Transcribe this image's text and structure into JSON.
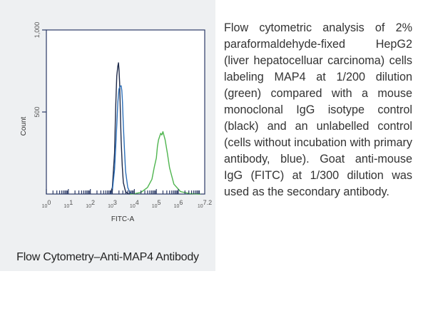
{
  "caption": "Flow Cytometry–Anti-MAP4 Antibody",
  "description": "Flow cytometric analysis of 2% paraformaldehyde-fixed HepG2 (liver hepatocelluar carcinoma) cells labeling MAP4                        at 1/200 dilution (green) compared with a mouse monoclonal IgG isotype control (black) and an unlabelled control (cells without incubation with primary antibody, blue). Goat anti-mouse IgG (FITC) at 1/300 dilution was used as the secondary antibody.",
  "colors": {
    "green": "#4fb54f",
    "black": "#1e2a4a",
    "blue": "#2d6fb8",
    "axis": "#2b3a66"
  },
  "chart_data": {
    "type": "line",
    "xlabel": "FITC-A",
    "ylabel": "Count",
    "xscale": "log",
    "xlim": [
      0,
      7.2
    ],
    "ylim": [
      0,
      1000
    ],
    "x_ticks": [
      {
        "v": 0,
        "label": "10",
        "exp": "0"
      },
      {
        "v": 1,
        "label": "10",
        "exp": "1"
      },
      {
        "v": 2,
        "label": "10",
        "exp": "2"
      },
      {
        "v": 3,
        "label": "10",
        "exp": "3"
      },
      {
        "v": 4,
        "label": "10",
        "exp": "4"
      },
      {
        "v": 5,
        "label": "10",
        "exp": "5"
      },
      {
        "v": 6,
        "label": "10",
        "exp": "6"
      },
      {
        "v": 7.2,
        "label": "10",
        "exp": "7.2"
      }
    ],
    "y_ticks": [
      {
        "v": 500,
        "label": "500"
      },
      {
        "v": 1000,
        "label": "1,000"
      }
    ],
    "series": [
      {
        "color_key": "black",
        "x": [
          2.9,
          3.0,
          3.1,
          3.15,
          3.2,
          3.25,
          3.28,
          3.3,
          3.33,
          3.36,
          3.4,
          3.45,
          3.5,
          3.6,
          3.7,
          3.8
        ],
        "y": [
          0,
          40,
          250,
          520,
          720,
          780,
          800,
          760,
          680,
          520,
          330,
          170,
          70,
          15,
          3,
          0
        ]
      },
      {
        "color_key": "blue",
        "x": [
          2.9,
          3.0,
          3.1,
          3.2,
          3.25,
          3.3,
          3.35,
          3.4,
          3.43,
          3.46,
          3.5,
          3.55,
          3.6,
          3.7,
          3.8,
          3.9
        ],
        "y": [
          0,
          20,
          150,
          420,
          560,
          640,
          655,
          660,
          630,
          560,
          420,
          270,
          140,
          40,
          8,
          0
        ]
      },
      {
        "color_key": "green",
        "x": [
          3.8,
          4.0,
          4.3,
          4.6,
          4.8,
          4.9,
          5.0,
          5.05,
          5.1,
          5.2,
          5.25,
          5.3,
          5.4,
          5.5,
          5.6,
          5.8,
          6.1,
          6.5,
          7.0
        ],
        "y": [
          0,
          2,
          10,
          40,
          90,
          160,
          220,
          290,
          330,
          370,
          360,
          380,
          330,
          250,
          160,
          60,
          15,
          3,
          0
        ]
      }
    ]
  }
}
